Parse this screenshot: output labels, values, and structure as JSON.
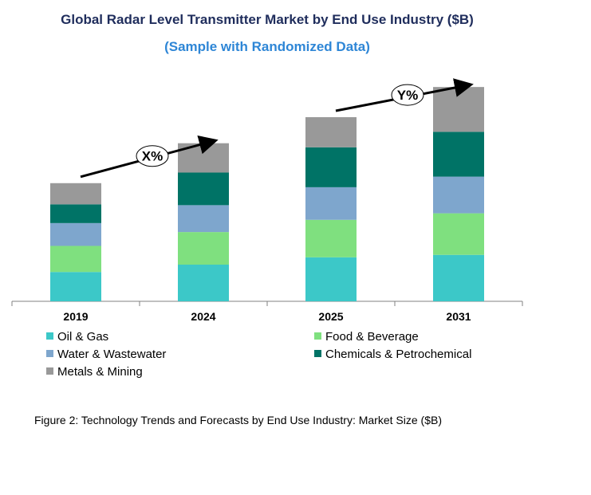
{
  "chart_data": {
    "type": "bar",
    "stacked": true,
    "title": "Global Radar Level Transmitter Market by End Use Industry ($B)",
    "subtitle": "(Sample with Randomized Data)",
    "categories": [
      "2019",
      "2024",
      "2025",
      "2031"
    ],
    "series": [
      {
        "name": "Oil & Gas",
        "color": "#3CC8C8",
        "values": [
          36,
          45,
          54,
          57
        ]
      },
      {
        "name": "Food & Beverage",
        "color": "#7FE07F",
        "values": [
          32,
          40,
          46,
          51
        ]
      },
      {
        "name": "Water & Wastewater",
        "color": "#7EA6CD",
        "values": [
          28,
          33,
          40,
          45
        ]
      },
      {
        "name": "Chemicals & Petrochemical",
        "color": "#007366",
        "values": [
          23,
          40,
          49,
          55
        ]
      },
      {
        "name": "Metals & Mining",
        "color": "#999999",
        "values": [
          26,
          36,
          37,
          55
        ]
      }
    ],
    "ylim": [
      0,
      270
    ],
    "grid": false,
    "legend_position": "bottom",
    "annotations": [
      {
        "label": "X%",
        "from": "2019",
        "to": "2024"
      },
      {
        "label": "Y%",
        "from": "2025",
        "to": "2031"
      }
    ]
  },
  "caption": "Figure 2: Technology  Trends  and Forecasts by End Use Industry:  Market Size ($B)",
  "colors": {
    "title": "#1F2D5C",
    "subtitle": "#2E86D6",
    "axis": "#808080"
  }
}
